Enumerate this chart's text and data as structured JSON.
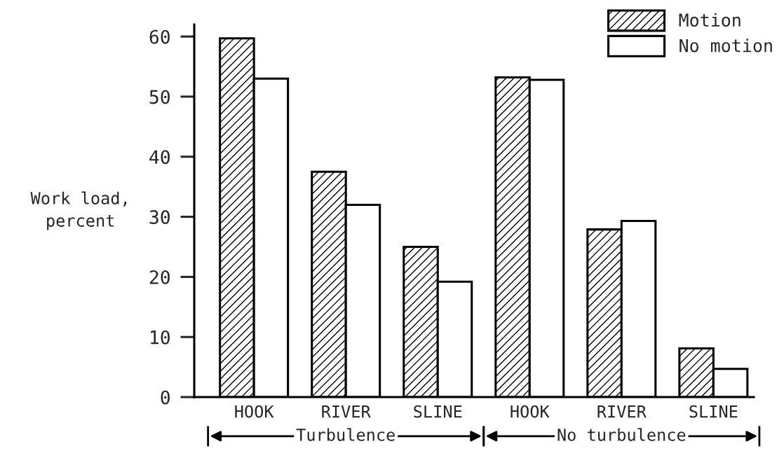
{
  "chart_data": {
    "type": "bar",
    "ylabel": "Work load,\npercent",
    "categories": [
      "HOOK",
      "RIVER",
      "SLINE",
      "HOOK",
      "RIVER",
      "SLINE"
    ],
    "series": [
      {
        "name": "Motion",
        "color": "#000000",
        "values": [
          59.7,
          37.5,
          25.0,
          53.2,
          27.9,
          8.1
        ]
      },
      {
        "name": "No motion",
        "color": "#ffffff",
        "values": [
          53.0,
          32.0,
          19.2,
          52.8,
          29.3,
          4.7
        ]
      }
    ],
    "ylim": [
      0,
      62
    ],
    "yticks": [
      0,
      10,
      20,
      30,
      40,
      50,
      60
    ],
    "legend": "top right",
    "annotations": [
      "Turbulence",
      "No turbulence"
    ]
  }
}
